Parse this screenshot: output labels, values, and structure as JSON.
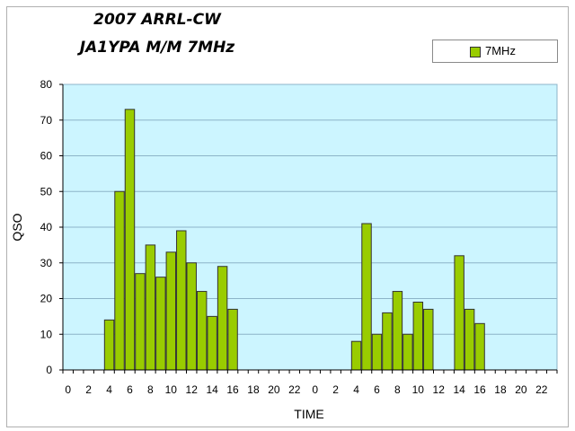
{
  "chart_data": {
    "type": "bar",
    "title": "2007 ARRL-CW",
    "subtitle": "JA1YPA M/M  7MHz",
    "xlabel": "TIME",
    "ylabel": "QSO",
    "ylim": [
      0,
      80
    ],
    "yticks": [
      "0",
      "10",
      "20",
      "30",
      "40",
      "50",
      "60",
      "70",
      "80"
    ],
    "grid": true,
    "legend_position": "top-right",
    "colors": {
      "bar": "#99cc00",
      "bar_border": "#333333",
      "plot_bg": "#ccf5ff",
      "grid": "#8cb4c8"
    },
    "categories": [
      "0",
      "1",
      "2",
      "3",
      "4",
      "5",
      "6",
      "7",
      "8",
      "9",
      "10",
      "11",
      "12",
      "13",
      "14",
      "15",
      "16",
      "17",
      "18",
      "19",
      "20",
      "21",
      "22",
      "23",
      "0",
      "1",
      "2",
      "3",
      "4",
      "5",
      "6",
      "7",
      "8",
      "9",
      "10",
      "11",
      "12",
      "13",
      "14",
      "15",
      "16",
      "17",
      "18",
      "19",
      "20",
      "21",
      "22",
      "23"
    ],
    "tick_labels": [
      "0",
      "",
      "2",
      "",
      "4",
      "",
      "6",
      "",
      "8",
      "",
      "10",
      "",
      "12",
      "",
      "14",
      "",
      "16",
      "",
      "18",
      "",
      "20",
      "",
      "22",
      "",
      "0",
      "",
      "2",
      "",
      "4",
      "",
      "6",
      "",
      "8",
      "",
      "10",
      "",
      "12",
      "",
      "14",
      "",
      "16",
      "",
      "18",
      "",
      "20",
      "",
      "22",
      ""
    ],
    "series": [
      {
        "name": "7MHz",
        "values": [
          0,
          0,
          0,
          0,
          14,
          50,
          73,
          27,
          35,
          26,
          33,
          39,
          30,
          22,
          15,
          29,
          17,
          0,
          0,
          0,
          0,
          0,
          0,
          0,
          0,
          0,
          0,
          0,
          8,
          41,
          10,
          16,
          22,
          10,
          19,
          17,
          0,
          0,
          32,
          17,
          13,
          0,
          0,
          0,
          0,
          0,
          0,
          0
        ]
      }
    ]
  }
}
